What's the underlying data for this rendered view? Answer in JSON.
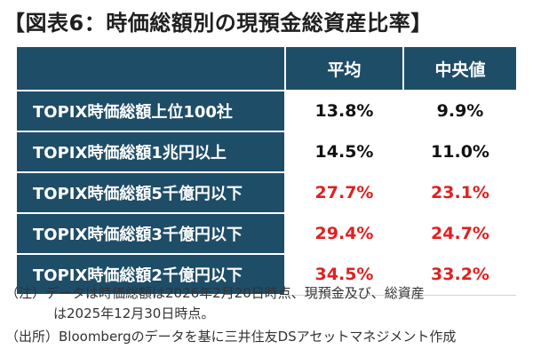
{
  "title": "【図表6：時価総額別の現預金総資産比率】",
  "colors": {
    "header_bg": "#1e4d68",
    "highlight": "#e02020",
    "normal": "#111111"
  },
  "chart_data": {
    "type": "table",
    "columns": [
      "平均",
      "中央値"
    ],
    "rows": [
      {
        "label": "TOPIX時価総額上位100社",
        "values": [
          "13.8%",
          "9.9%"
        ],
        "highlight": false
      },
      {
        "label": "TOPIX時価総額1兆円以上",
        "values": [
          "14.5%",
          "11.0%"
        ],
        "highlight": false
      },
      {
        "label": "TOPIX時価総額5千億円以下",
        "values": [
          "27.7%",
          "23.1%"
        ],
        "highlight": true
      },
      {
        "label": "TOPIX時価総額3千億円以下",
        "values": [
          "29.4%",
          "24.7%"
        ],
        "highlight": true
      },
      {
        "label": "TOPIX時価総額2千億円以下",
        "values": [
          "34.5%",
          "33.2%"
        ],
        "highlight": true
      }
    ]
  },
  "notes": {
    "line1": "（注）データは時価総額は2026年2月20日時点、現預金及び、総資産",
    "line2": "は2025年12月30日時点。",
    "line3": "（出所）Bloombergのデータを基に三井住友DSアセットマネジメント作成"
  }
}
